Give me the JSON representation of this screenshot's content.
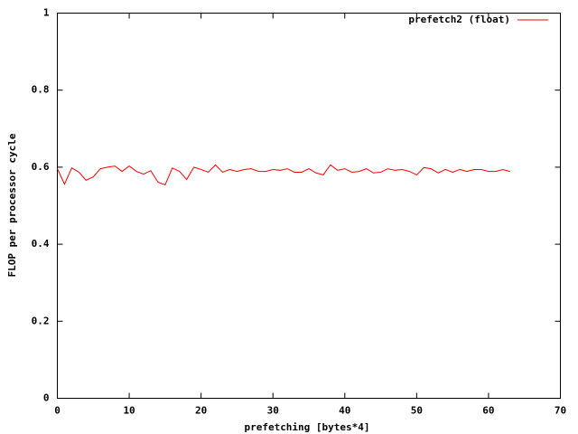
{
  "chart_data": {
    "type": "line",
    "x_label": "prefetching [bytes*4]",
    "y_label": "FLOP per processor cycle",
    "x": [
      0,
      1,
      2,
      3,
      4,
      5,
      6,
      7,
      8,
      9,
      10,
      11,
      12,
      13,
      14,
      15,
      16,
      17,
      18,
      19,
      20,
      21,
      22,
      23,
      24,
      25,
      26,
      27,
      28,
      29,
      30,
      31,
      32,
      33,
      34,
      35,
      36,
      37,
      38,
      39,
      40,
      41,
      42,
      43,
      44,
      45,
      46,
      47,
      48,
      49,
      50,
      51,
      52,
      53,
      54,
      55,
      56,
      57,
      58,
      59,
      60,
      61,
      62,
      63
    ],
    "series": [
      {
        "name": "prefetch2 (float)",
        "color": "#ff0000",
        "values": [
          0.596,
          0.556,
          0.598,
          0.587,
          0.566,
          0.575,
          0.596,
          0.6,
          0.603,
          0.589,
          0.603,
          0.589,
          0.582,
          0.591,
          0.561,
          0.554,
          0.598,
          0.589,
          0.568,
          0.6,
          0.594,
          0.587,
          0.606,
          0.587,
          0.594,
          0.589,
          0.594,
          0.596,
          0.589,
          0.589,
          0.594,
          0.592,
          0.596,
          0.587,
          0.587,
          0.596,
          0.585,
          0.58,
          0.606,
          0.592,
          0.596,
          0.587,
          0.589,
          0.596,
          0.585,
          0.587,
          0.596,
          0.592,
          0.594,
          0.589,
          0.58,
          0.599,
          0.596,
          0.585,
          0.594,
          0.587,
          0.594,
          0.589,
          0.594,
          0.594,
          0.589,
          0.589,
          0.594,
          0.589
        ]
      }
    ],
    "xlim": [
      0,
      70
    ],
    "xticks": [
      0,
      10,
      20,
      30,
      40,
      50,
      60,
      70
    ],
    "ylim": [
      0,
      1
    ],
    "yticks": [
      0,
      0.2,
      0.4,
      0.6,
      0.8,
      1
    ],
    "legend": "top-right"
  }
}
